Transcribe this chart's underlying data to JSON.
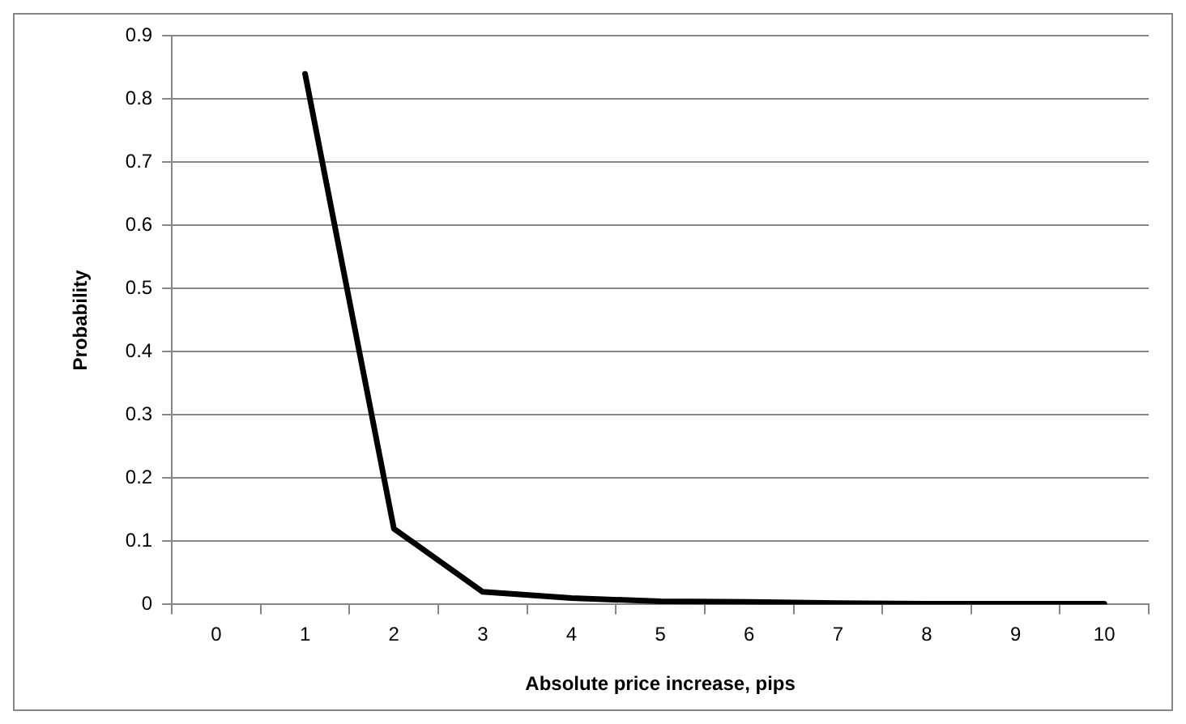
{
  "chart_data": {
    "type": "line",
    "xlabel": "Absolute price increase, pips",
    "ylabel": "Probability",
    "categories": [
      "0",
      "1",
      "2",
      "3",
      "4",
      "5",
      "6",
      "7",
      "8",
      "9",
      "10"
    ],
    "series": [
      {
        "color": "#000000",
        "values": [
          null,
          0.84,
          0.12,
          0.02,
          0.01,
          0.005,
          0.004,
          0.002,
          0.001,
          0.001,
          0.001
        ]
      }
    ],
    "ylim": [
      0,
      0.9
    ],
    "yticks": [
      0,
      0.1,
      0.2,
      0.3,
      0.4,
      0.5,
      0.6,
      0.7,
      0.8,
      0.9
    ],
    "grid": "y",
    "legend": false,
    "marker": "none",
    "line_style": "solid"
  }
}
